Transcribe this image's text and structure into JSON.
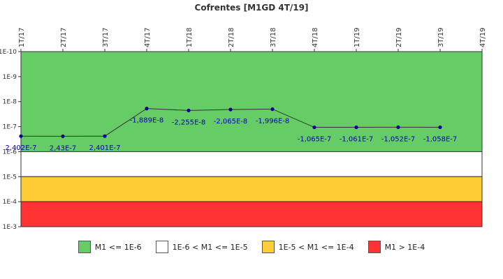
{
  "chart_data": {
    "type": "line",
    "title": "Cofrentes [M1GD 4T/19]",
    "xlabel": "",
    "ylabel": "",
    "y_scale": "log",
    "y_axis_inverted": true,
    "ylim": [
      1e-10,
      0.001
    ],
    "yticks": [
      "1E-10",
      "1E-9",
      "1E-8",
      "1E-7",
      "1E-6",
      "1E-5",
      "1E-4",
      "1E-3"
    ],
    "categories": [
      "1T/17",
      "2T/17",
      "3T/17",
      "4T/17",
      "1T/18",
      "2T/18",
      "3T/18",
      "4T/18",
      "1T/19",
      "2T/19",
      "3T/19",
      "4T/19"
    ],
    "series": [
      {
        "values": [
          2.402e-07,
          2.43e-07,
          2.401e-07,
          -1.889e-08,
          -2.255e-08,
          -2.065e-08,
          -1.996e-08,
          -1.065e-07,
          -1.061e-07,
          -1.052e-07,
          -1.058e-07,
          null
        ],
        "labels": [
          "2,402E-7",
          "2,43E-7",
          "2,401E-7",
          "-1,889E-8",
          "-2,255E-8",
          "-2,065E-8",
          "-1,996E-8",
          "-1,065E-7",
          "-1,061E-7",
          "-1,052E-7",
          "-1,058E-7",
          ""
        ],
        "color": "#000099"
      }
    ],
    "bands": [
      {
        "from": 1e-10,
        "to": 1e-06,
        "color": "#66cc66",
        "label": "M1 <= 1E-6"
      },
      {
        "from": 1e-06,
        "to": 1e-05,
        "color": "#ffffff",
        "label": "1E-6 < M1 <= 1E-5"
      },
      {
        "from": 1e-05,
        "to": 0.0001,
        "color": "#ffcc33",
        "label": "1E-5 < M1 <= 1E-4"
      },
      {
        "from": 0.0001,
        "to": 0.001,
        "color": "#ff3333",
        "label": "M1 > 1E-4"
      }
    ],
    "legend_position": "bottom",
    "grid": false
  }
}
